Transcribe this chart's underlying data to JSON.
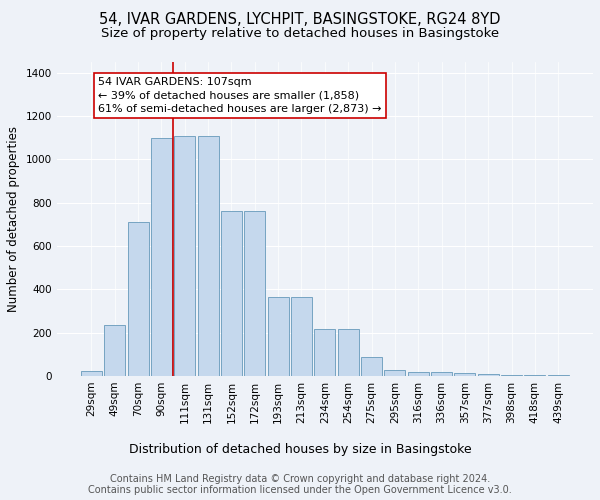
{
  "title": "54, IVAR GARDENS, LYCHPIT, BASINGSTOKE, RG24 8YD",
  "subtitle": "Size of property relative to detached houses in Basingstoke",
  "xlabel": "Distribution of detached houses by size in Basingstoke",
  "ylabel": "Number of detached properties",
  "categories": [
    "29sqm",
    "49sqm",
    "70sqm",
    "90sqm",
    "111sqm",
    "131sqm",
    "152sqm",
    "172sqm",
    "193sqm",
    "213sqm",
    "234sqm",
    "254sqm",
    "275sqm",
    "295sqm",
    "316sqm",
    "336sqm",
    "357sqm",
    "377sqm",
    "398sqm",
    "418sqm",
    "439sqm"
  ],
  "values": [
    25,
    235,
    710,
    1100,
    1110,
    1110,
    760,
    760,
    365,
    365,
    215,
    215,
    90,
    30,
    20,
    18,
    15,
    10,
    5,
    5,
    3
  ],
  "bar_color": "#c5d8ed",
  "bar_edge_color": "#6699bb",
  "vline_color": "#cc0000",
  "annotation_text": "54 IVAR GARDENS: 107sqm\n← 39% of detached houses are smaller (1,858)\n61% of semi-detached houses are larger (2,873) →",
  "annotation_box_color": "#ffffff",
  "annotation_box_edge": "#cc0000",
  "footer1": "Contains HM Land Registry data © Crown copyright and database right 2024.",
  "footer2": "Contains public sector information licensed under the Open Government Licence v3.0.",
  "bg_color": "#eef2f8",
  "plot_bg_color": "#eef2f8",
  "ylim": [
    0,
    1450
  ],
  "title_fontsize": 10.5,
  "subtitle_fontsize": 9.5,
  "ylabel_fontsize": 8.5,
  "xlabel_fontsize": 9,
  "tick_fontsize": 7.5,
  "footer_fontsize": 7,
  "annot_fontsize": 8
}
